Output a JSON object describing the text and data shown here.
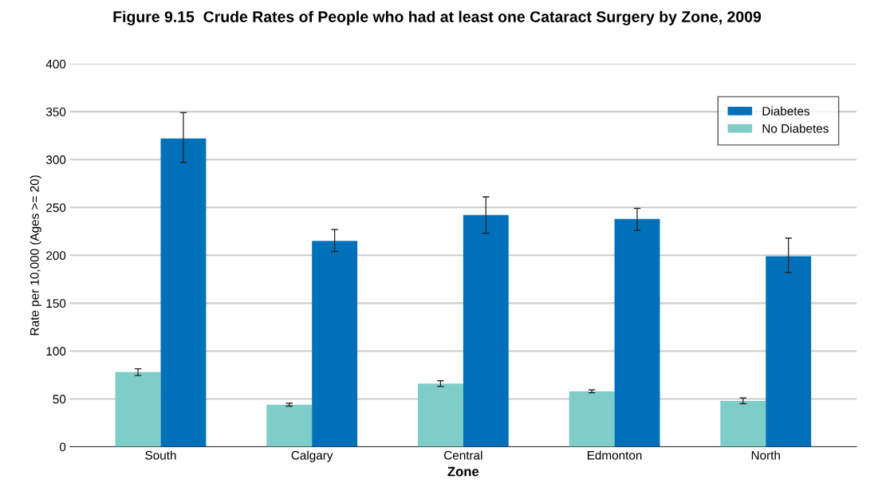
{
  "chart_data": {
    "type": "bar",
    "title": "Figure 9.15  Crude Rates of People who had at least one Cataract Surgery by Zone, 2009",
    "xlabel": "Zone",
    "ylabel": "Rate per 10,000 (Ages >= 20)",
    "categories": [
      "South",
      "Calgary",
      "Central",
      "Edmonton",
      "North"
    ],
    "series": [
      {
        "name": "No Diabetes",
        "color": "#7ecdc8",
        "values": [
          78,
          44,
          66,
          58,
          48
        ],
        "errors": [
          [
            74.5,
            81.5
          ],
          [
            42.5,
            45.5
          ],
          [
            63,
            69
          ],
          [
            56.5,
            59.5
          ],
          [
            45,
            51
          ]
        ]
      },
      {
        "name": "Diabetes",
        "color": "#0070b8",
        "values": [
          322,
          215,
          242,
          238,
          199
        ],
        "errors": [
          [
            297,
            349
          ],
          [
            204,
            227
          ],
          [
            223,
            261
          ],
          [
            226,
            249
          ],
          [
            182,
            218
          ]
        ]
      }
    ],
    "ylim": [
      0,
      400
    ],
    "yticks": [
      0,
      50,
      100,
      150,
      200,
      250,
      300,
      350,
      400
    ],
    "grid": "y",
    "legend": "top right"
  }
}
